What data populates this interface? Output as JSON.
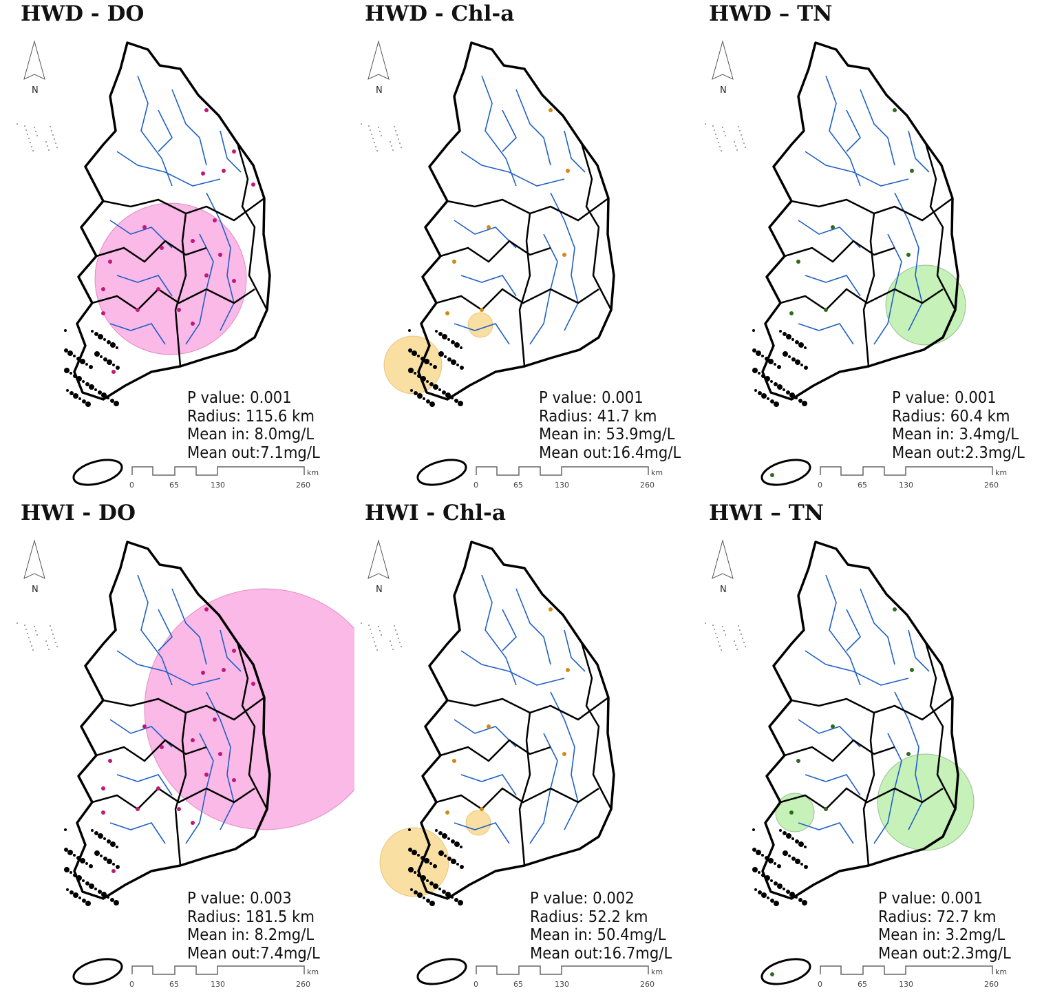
{
  "figure": {
    "colors": {
      "river": "#1f5fc8",
      "do_cluster": "#f9a8e0",
      "do_point": "#c0187a",
      "chl_cluster": "#f8d78a",
      "chl_point": "#d08a10",
      "tn_cluster": "#b8eea8",
      "tn_point": "#2d6a1e",
      "outline": "#000000"
    },
    "north_label": "N",
    "scale_bar": {
      "unit": "km",
      "ticks": [
        "0",
        "65",
        "130",
        "260"
      ]
    },
    "panels": [
      {
        "title": "HWD - DO",
        "variable": "DO",
        "p_value": "P value: 0.001",
        "radius": "Radius: 115.6 km",
        "mean_in": "Mean in: 8.0mg/L",
        "mean_out": "Mean out:7.1mg/L",
        "radius_km": 115.6
      },
      {
        "title": "HWD - Chl-a",
        "variable": "Chl-a",
        "p_value": "P value: 0.001",
        "radius": "Radius: 41.7 km",
        "mean_in": "Mean in: 53.9mg/L",
        "mean_out": "Mean out:16.4mg/L",
        "radius_km": 41.7
      },
      {
        "title": "HWD – TN",
        "variable": "TN",
        "p_value": "P value: 0.001",
        "radius": "Radius: 60.4 km",
        "mean_in": "Mean in: 3.4mg/L",
        "mean_out": "Mean out:2.3mg/L",
        "radius_km": 60.4
      },
      {
        "title": "HWI - DO",
        "variable": "DO",
        "p_value": "P value: 0.003",
        "radius": "Radius: 181.5 km",
        "mean_in": "Mean in: 8.2mg/L",
        "mean_out": "Mean out:7.4mg/L",
        "radius_km": 181.5
      },
      {
        "title": "HWI - Chl-a",
        "variable": "Chl-a",
        "p_value": "P value: 0.002",
        "radius": "Radius: 52.2 km",
        "mean_in": "Mean in: 50.4mg/L",
        "mean_out": "Mean out:16.7mg/L",
        "radius_km": 52.2
      },
      {
        "title": "HWI – TN",
        "variable": "TN",
        "p_value": "P value: 0.001",
        "radius": "Radius: 72.7 km",
        "mean_in": "Mean in: 3.2mg/L",
        "mean_out": "Mean out:2.3mg/L",
        "radius_km": 72.7
      }
    ]
  }
}
